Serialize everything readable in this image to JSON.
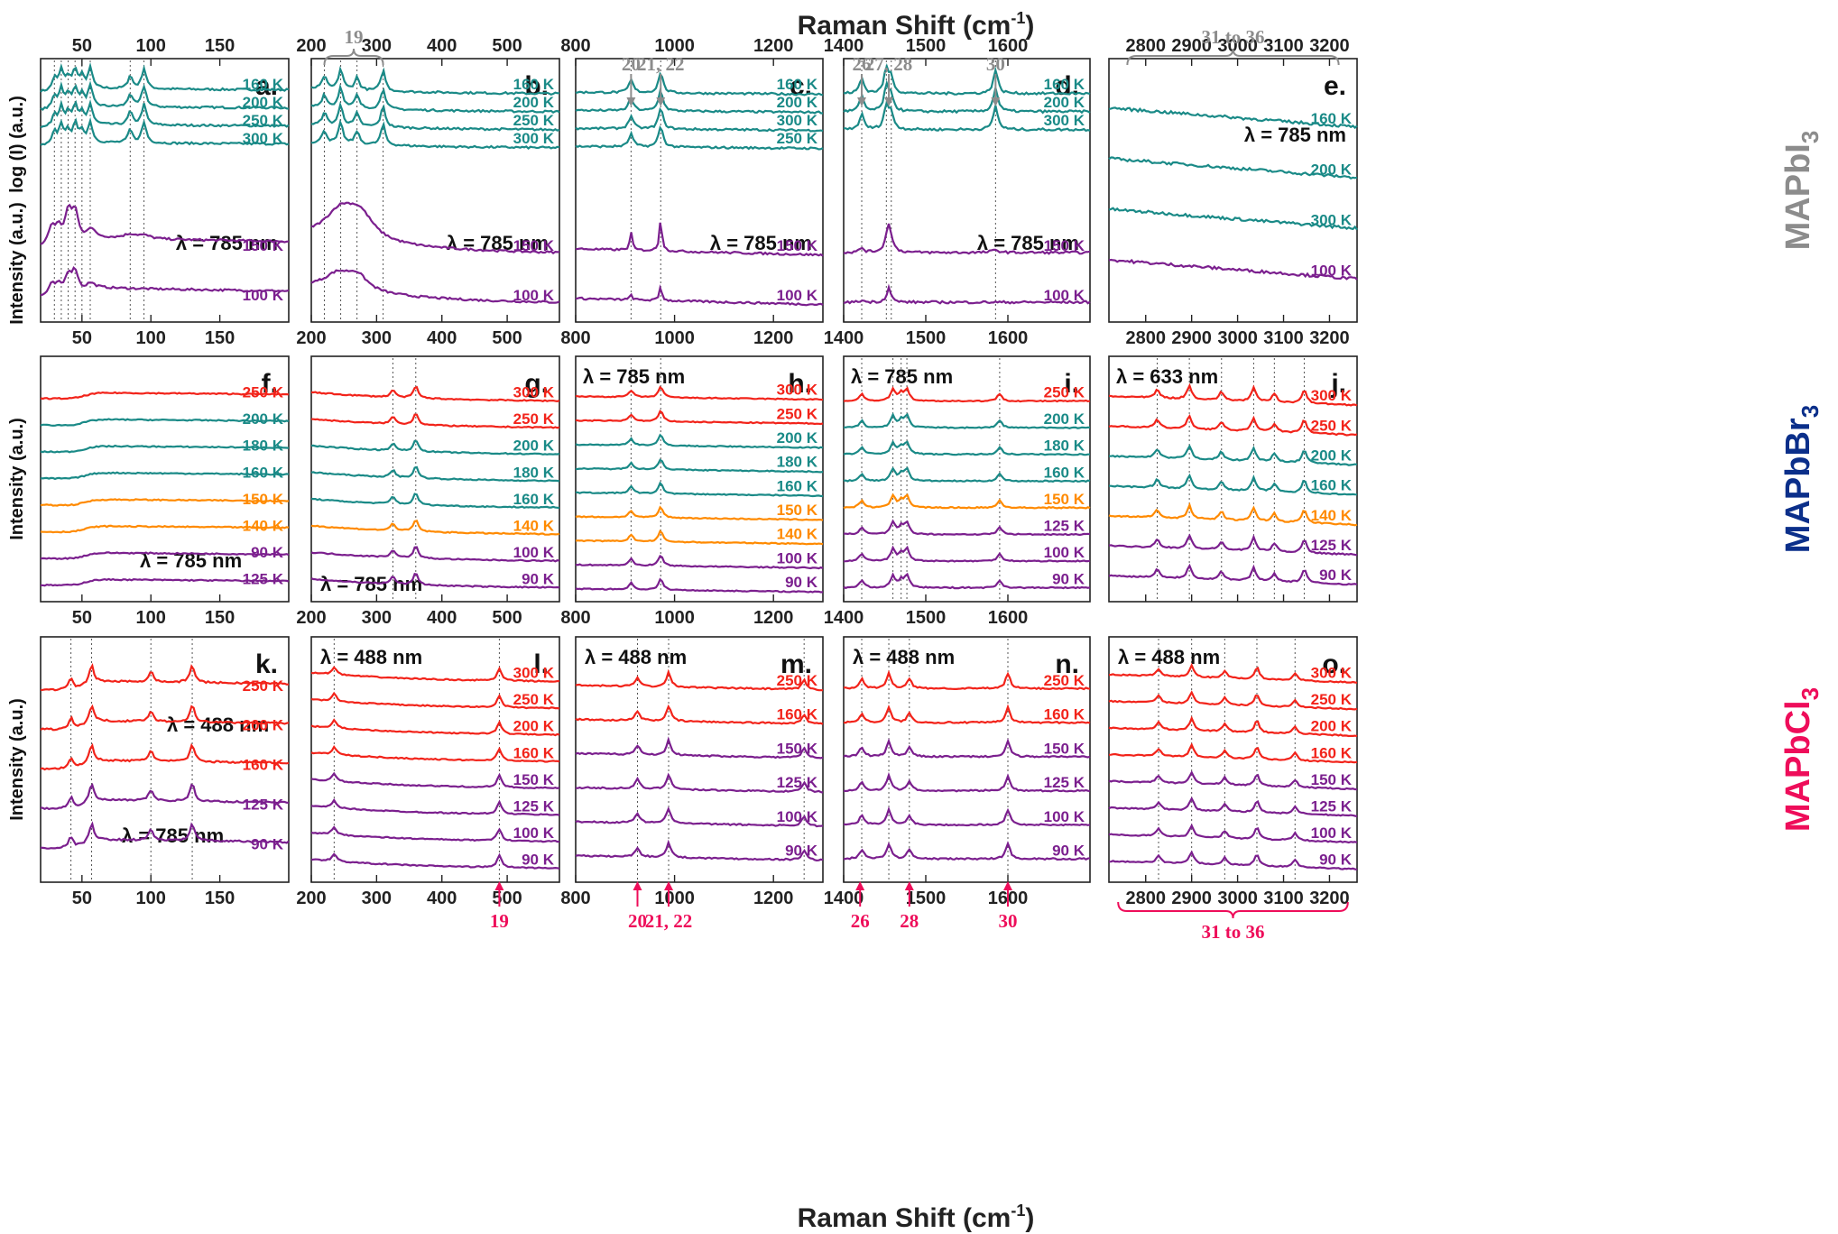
{
  "figure": {
    "top_axis_title": "Raman Shift (cm",
    "bottom_axis_title": "Raman Shift (cm",
    "unit_superscript": "-1",
    "unit_close": ")",
    "row_labels": [
      {
        "text": "MAPbI",
        "sub": "3",
        "color": "#8c8c8c"
      },
      {
        "text": "MAPbBr",
        "sub": "3",
        "color": "#0b2f8a"
      },
      {
        "text": "MAPbCl",
        "sub": "3",
        "color": "#ee0d5a"
      }
    ],
    "y_labels": [
      {
        "row": 0,
        "upper": "log (I) (a.u.)",
        "lower": "Intensity (a.u.)"
      },
      {
        "row": 1,
        "text": "Intensity (a.u.)"
      },
      {
        "row": 2,
        "text": "Intensity (a.u.)"
      }
    ],
    "top_markers": [
      {
        "col": 1,
        "label": "19",
        "type": "brace",
        "from": 220,
        "to": 310
      },
      {
        "col": 2,
        "label": "20",
        "type": "arrow",
        "at": 912
      },
      {
        "col": 2,
        "label": "21, 22",
        "type": "arrow",
        "at": 972
      },
      {
        "col": 3,
        "label": "26",
        "type": "arrow",
        "at": 1422
      },
      {
        "col": 3,
        "label": "27, 28",
        "type": "arrow",
        "at": 1455
      },
      {
        "col": 3,
        "label": "30",
        "type": "arrow",
        "at": 1585
      },
      {
        "col": 4,
        "label": "31 to 36",
        "type": "brace",
        "from": 2760,
        "to": 3220
      }
    ],
    "bottom_markers": [
      {
        "col": 1,
        "label": "19",
        "type": "arrow",
        "at": 488
      },
      {
        "col": 2,
        "label": "20",
        "type": "arrow",
        "at": 925
      },
      {
        "col": 2,
        "label": "21, 22",
        "type": "arrow",
        "at": 988
      },
      {
        "col": 3,
        "label": "26",
        "type": "arrow",
        "at": 1420
      },
      {
        "col": 3,
        "label": "28",
        "type": "arrow",
        "at": 1480
      },
      {
        "col": 3,
        "label": "30",
        "type": "arrow",
        "at": 1600
      },
      {
        "col": 4,
        "label": "31 to 36",
        "type": "brace",
        "from": 2740,
        "to": 3240
      }
    ],
    "colors": {
      "teal": "#1a8a87",
      "purple": "#7b1f8e",
      "red": "#f2231a",
      "orange": "#ff8a00",
      "gray": "#8c8c8c",
      "pink": "#ee0d5a"
    }
  },
  "chart_data": [
    {
      "panel": "a.",
      "type": "line",
      "xlim": [
        20,
        200
      ],
      "ticks": [
        50,
        100,
        150
      ],
      "tick_labels": [
        "50",
        "100",
        "150"
      ],
      "vlines": [
        30,
        35,
        40,
        45,
        50,
        56,
        85,
        95
      ],
      "annotation": "λ = 785 nm",
      "series": [
        {
          "name": "160 K",
          "color": "teal",
          "base": 0.72,
          "section": "upper"
        },
        {
          "name": "200 K",
          "color": "teal",
          "base": 0.57,
          "section": "upper"
        },
        {
          "name": "250 K",
          "color": "teal",
          "base": 0.48,
          "section": "upper"
        },
        {
          "name": "300 K",
          "color": "teal",
          "base": 0.4,
          "section": "upper"
        },
        {
          "name": "150 K",
          "color": "purple",
          "base": 0.06,
          "peaks": [
            [
              28,
              0.36,
              3
            ],
            [
              33,
              0.3,
              3
            ],
            [
              40,
              0.6,
              3
            ],
            [
              45,
              0.6,
              3
            ],
            [
              56,
              0.2,
              4
            ],
            [
              85,
              0.08,
              6
            ],
            [
              95,
              0.06,
              6
            ]
          ]
        },
        {
          "name": "100 K",
          "color": "purple",
          "base": 0.01,
          "peaks": [
            [
              28,
              0.22,
              3
            ],
            [
              33,
              0.18,
              3
            ],
            [
              40,
              0.38,
              3
            ],
            [
              45,
              0.44,
              3
            ],
            [
              56,
              0.12,
              4
            ]
          ]
        }
      ]
    },
    {
      "panel": "b.",
      "type": "line",
      "xlim": [
        200,
        580
      ],
      "ticks": [
        200,
        300,
        400,
        500
      ],
      "tick_labels": [
        "200",
        "300",
        "400",
        "500"
      ],
      "vlines": [
        220,
        245,
        270,
        310
      ],
      "annotation": "λ = 785 nm",
      "series": [
        {
          "name": "160 K",
          "color": "teal",
          "section": "upper"
        },
        {
          "name": "200 K",
          "color": "teal",
          "section": "upper"
        },
        {
          "name": "250 K",
          "color": "teal",
          "section": "upper"
        },
        {
          "name": "300 K",
          "color": "teal",
          "section": "upper"
        },
        {
          "name": "150 K",
          "color": "purple",
          "peaks": [
            [
              245,
              0.55,
              30
            ],
            [
              275,
              0.45,
              25
            ]
          ]
        },
        {
          "name": "100 K",
          "color": "purple",
          "peaks": [
            [
              240,
              0.3,
              25
            ],
            [
              270,
              0.3,
              20
            ]
          ]
        }
      ]
    },
    {
      "panel": "c.",
      "type": "line",
      "xlim": [
        800,
        1300
      ],
      "ticks": [
        800,
        1000,
        1200
      ],
      "tick_labels": [
        "800",
        "1000",
        "1200"
      ],
      "vlines": [
        912,
        972
      ],
      "annotation": "λ = 785 nm",
      "series": [
        {
          "name": "160 K",
          "color": "teal",
          "section": "upper"
        },
        {
          "name": "200 K",
          "color": "teal",
          "section": "upper"
        },
        {
          "name": "300 K",
          "color": "teal",
          "section": "upper"
        },
        {
          "name": "250 K",
          "color": "teal",
          "section": "upper"
        },
        {
          "name": "150 K",
          "color": "purple",
          "peaks": [
            [
              912,
              0.35,
              3
            ],
            [
              972,
              0.65,
              3
            ]
          ]
        },
        {
          "name": "100 K",
          "color": "purple",
          "peaks": [
            [
              912,
              0.1,
              3
            ],
            [
              972,
              0.28,
              3
            ]
          ]
        }
      ]
    },
    {
      "panel": "d.",
      "type": "line",
      "xlim": [
        1400,
        1700
      ],
      "ticks": [
        1400,
        1500,
        1600
      ],
      "tick_labels": [
        "1400",
        "1500",
        "1600"
      ],
      "vlines": [
        1422,
        1452,
        1458,
        1585
      ],
      "annotation": "λ = 785 nm",
      "series": [
        {
          "name": "160 K",
          "color": "teal",
          "section": "upper"
        },
        {
          "name": "200 K",
          "color": "teal",
          "section": "upper"
        },
        {
          "name": "300 K",
          "color": "teal",
          "section": "upper"
        },
        {
          "name": "150 K",
          "color": "purple",
          "peaks": [
            [
              1422,
              0.08,
              3
            ],
            [
              1455,
              0.5,
              4
            ],
            [
              1585,
              0.04,
              6
            ]
          ]
        },
        {
          "name": "100 K",
          "color": "purple",
          "peaks": [
            [
              1422,
              0.03,
              3
            ],
            [
              1455,
              0.25,
              3
            ]
          ]
        }
      ]
    },
    {
      "panel": "e.",
      "type": "line",
      "xlim": [
        2720,
        3260
      ],
      "ticks": [
        2800,
        2900,
        3000,
        3100,
        3200
      ],
      "tick_labels": [
        "2800",
        "2900",
        "3000",
        "3100",
        "3200"
      ],
      "annotation": "λ = 785 nm",
      "series": [
        {
          "name": "160 K",
          "color": "teal"
        },
        {
          "name": "200 K",
          "color": "teal"
        },
        {
          "name": "300 K",
          "color": "teal"
        },
        {
          "name": "100 K",
          "color": "purple"
        }
      ]
    },
    {
      "panel": "f.",
      "type": "line",
      "xlim": [
        20,
        200
      ],
      "ticks": [
        50,
        100,
        150
      ],
      "tick_labels": [
        "50",
        "100",
        "150"
      ],
      "annotation": "λ = 785 nm",
      "series": [
        {
          "name": "250 K",
          "color": "red"
        },
        {
          "name": "200 K",
          "color": "teal"
        },
        {
          "name": "180 K",
          "color": "teal"
        },
        {
          "name": "160 K",
          "color": "teal"
        },
        {
          "name": "150 K",
          "color": "orange"
        },
        {
          "name": "140 K",
          "color": "orange"
        },
        {
          "name": "90 K",
          "color": "purple"
        },
        {
          "name": "125 K",
          "color": "purple"
        }
      ]
    },
    {
      "panel": "g.",
      "type": "line",
      "xlim": [
        200,
        580
      ],
      "ticks": [
        200,
        300,
        400,
        500
      ],
      "tick_labels": [
        "200",
        "300",
        "400",
        "500"
      ],
      "vlines": [
        325,
        360
      ],
      "annotation": "λ = 785 nm",
      "series": [
        {
          "name": "300 K",
          "color": "red"
        },
        {
          "name": "250 K",
          "color": "red"
        },
        {
          "name": "200 K",
          "color": "teal"
        },
        {
          "name": "180 K",
          "color": "teal"
        },
        {
          "name": "160 K",
          "color": "teal"
        },
        {
          "name": "140 K",
          "color": "orange"
        },
        {
          "name": "100 K",
          "color": "purple"
        },
        {
          "name": "90 K",
          "color": "purple"
        }
      ]
    },
    {
      "panel": "h.",
      "type": "line",
      "xlim": [
        800,
        1300
      ],
      "ticks": [
        800,
        1000,
        1200
      ],
      "tick_labels": [
        "800",
        "1000",
        "1200"
      ],
      "vlines": [
        912,
        972
      ],
      "annotation": "λ = 785 nm",
      "series": [
        {
          "name": "300 K",
          "color": "red"
        },
        {
          "name": "250 K",
          "color": "red"
        },
        {
          "name": "200 K",
          "color": "teal"
        },
        {
          "name": "180 K",
          "color": "teal"
        },
        {
          "name": "160 K",
          "color": "teal"
        },
        {
          "name": "150 K",
          "color": "orange"
        },
        {
          "name": "140 K",
          "color": "orange"
        },
        {
          "name": "100 K",
          "color": "purple"
        },
        {
          "name": "90 K",
          "color": "purple"
        }
      ]
    },
    {
      "panel": "i.",
      "type": "line",
      "xlim": [
        1400,
        1700
      ],
      "ticks": [
        1400,
        1500,
        1600
      ],
      "tick_labels": [
        "1400",
        "1500",
        "1600"
      ],
      "vlines": [
        1422,
        1460,
        1470,
        1477,
        1590
      ],
      "annotation": "λ = 785 nm",
      "series": [
        {
          "name": "250 K",
          "color": "red"
        },
        {
          "name": "200 K",
          "color": "teal"
        },
        {
          "name": "180 K",
          "color": "teal"
        },
        {
          "name": "160 K",
          "color": "teal"
        },
        {
          "name": "150 K",
          "color": "orange"
        },
        {
          "name": "125 K",
          "color": "purple"
        },
        {
          "name": "100 K",
          "color": "purple"
        },
        {
          "name": "90 K",
          "color": "purple"
        }
      ]
    },
    {
      "panel": "j.",
      "type": "line",
      "xlim": [
        2720,
        3260
      ],
      "ticks": [
        2800,
        2900,
        3000,
        3100,
        3200
      ],
      "tick_labels": [],
      "vlines": [
        2825,
        2895,
        2965,
        3035,
        3080,
        3145
      ],
      "annotation": "λ = 633 nm",
      "series": [
        {
          "name": "300 K",
          "color": "red"
        },
        {
          "name": "250 K",
          "color": "red"
        },
        {
          "name": "200 K",
          "color": "teal"
        },
        {
          "name": "160 K",
          "color": "teal"
        },
        {
          "name": "140 K",
          "color": "orange"
        },
        {
          "name": "125 K",
          "color": "purple"
        },
        {
          "name": "90 K",
          "color": "purple"
        }
      ]
    },
    {
      "panel": "k.",
      "type": "line",
      "xlim": [
        20,
        200
      ],
      "ticks": [
        50,
        100,
        150
      ],
      "tick_labels": [
        "50",
        "100",
        "150"
      ],
      "vlines": [
        42,
        57,
        100,
        130
      ],
      "annotations": [
        "λ = 488 nm",
        "λ = 785 nm"
      ],
      "series": [
        {
          "name": "250 K",
          "color": "red"
        },
        {
          "name": "200 K",
          "color": "red"
        },
        {
          "name": "160 K",
          "color": "red"
        },
        {
          "name": "125 K",
          "color": "purple"
        },
        {
          "name": "90 K",
          "color": "purple"
        }
      ]
    },
    {
      "panel": "l.",
      "type": "line",
      "xlim": [
        200,
        580
      ],
      "ticks": [
        200,
        300,
        400,
        500
      ],
      "tick_labels": [
        "200",
        "300",
        "400",
        "500"
      ],
      "vlines": [
        235,
        488
      ],
      "annotation": "λ = 488 nm",
      "series": [
        {
          "name": "300 K",
          "color": "red"
        },
        {
          "name": "250 K",
          "color": "red"
        },
        {
          "name": "200 K",
          "color": "red"
        },
        {
          "name": "160 K",
          "color": "red"
        },
        {
          "name": "150 K",
          "color": "purple"
        },
        {
          "name": "125 K",
          "color": "purple"
        },
        {
          "name": "100 K",
          "color": "purple"
        },
        {
          "name": "90 K",
          "color": "purple"
        }
      ]
    },
    {
      "panel": "m.",
      "type": "line",
      "xlim": [
        800,
        1300
      ],
      "ticks": [
        800,
        1000,
        1200
      ],
      "tick_labels": [
        "800",
        "1000",
        "1200"
      ],
      "vlines": [
        925,
        988,
        1262
      ],
      "annotation": "λ = 488 nm",
      "series": [
        {
          "name": "250 K",
          "color": "red"
        },
        {
          "name": "160 K",
          "color": "red"
        },
        {
          "name": "150 K",
          "color": "purple"
        },
        {
          "name": "125 K",
          "color": "purple"
        },
        {
          "name": "100 K",
          "color": "purple"
        },
        {
          "name": "90 K",
          "color": "purple"
        }
      ]
    },
    {
      "panel": "n.",
      "type": "line",
      "xlim": [
        1400,
        1700
      ],
      "ticks": [
        1400,
        1500,
        1600
      ],
      "tick_labels": [
        "1400",
        "1500",
        "1600"
      ],
      "vlines": [
        1422,
        1455,
        1480,
        1600
      ],
      "annotation": "λ = 488 nm",
      "series": [
        {
          "name": "250 K",
          "color": "red"
        },
        {
          "name": "160 K",
          "color": "red"
        },
        {
          "name": "150 K",
          "color": "purple"
        },
        {
          "name": "125 K",
          "color": "purple"
        },
        {
          "name": "100 K",
          "color": "purple"
        },
        {
          "name": "90 K",
          "color": "purple"
        }
      ]
    },
    {
      "panel": "o.",
      "type": "line",
      "xlim": [
        2720,
        3260
      ],
      "ticks": [
        2800,
        2900,
        3000,
        3100,
        3200
      ],
      "tick_labels": [
        "2800",
        "2900",
        "3000",
        "3100",
        "3200"
      ],
      "vlines": [
        2828,
        2900,
        2972,
        3042,
        3125
      ],
      "annotation": "λ = 488 nm",
      "series": [
        {
          "name": "300 K",
          "color": "red"
        },
        {
          "name": "250 K",
          "color": "red"
        },
        {
          "name": "200 K",
          "color": "red"
        },
        {
          "name": "160 K",
          "color": "red"
        },
        {
          "name": "150 K",
          "color": "purple"
        },
        {
          "name": "125 K",
          "color": "purple"
        },
        {
          "name": "100 K",
          "color": "purple"
        },
        {
          "name": "90 K",
          "color": "purple"
        }
      ]
    }
  ]
}
